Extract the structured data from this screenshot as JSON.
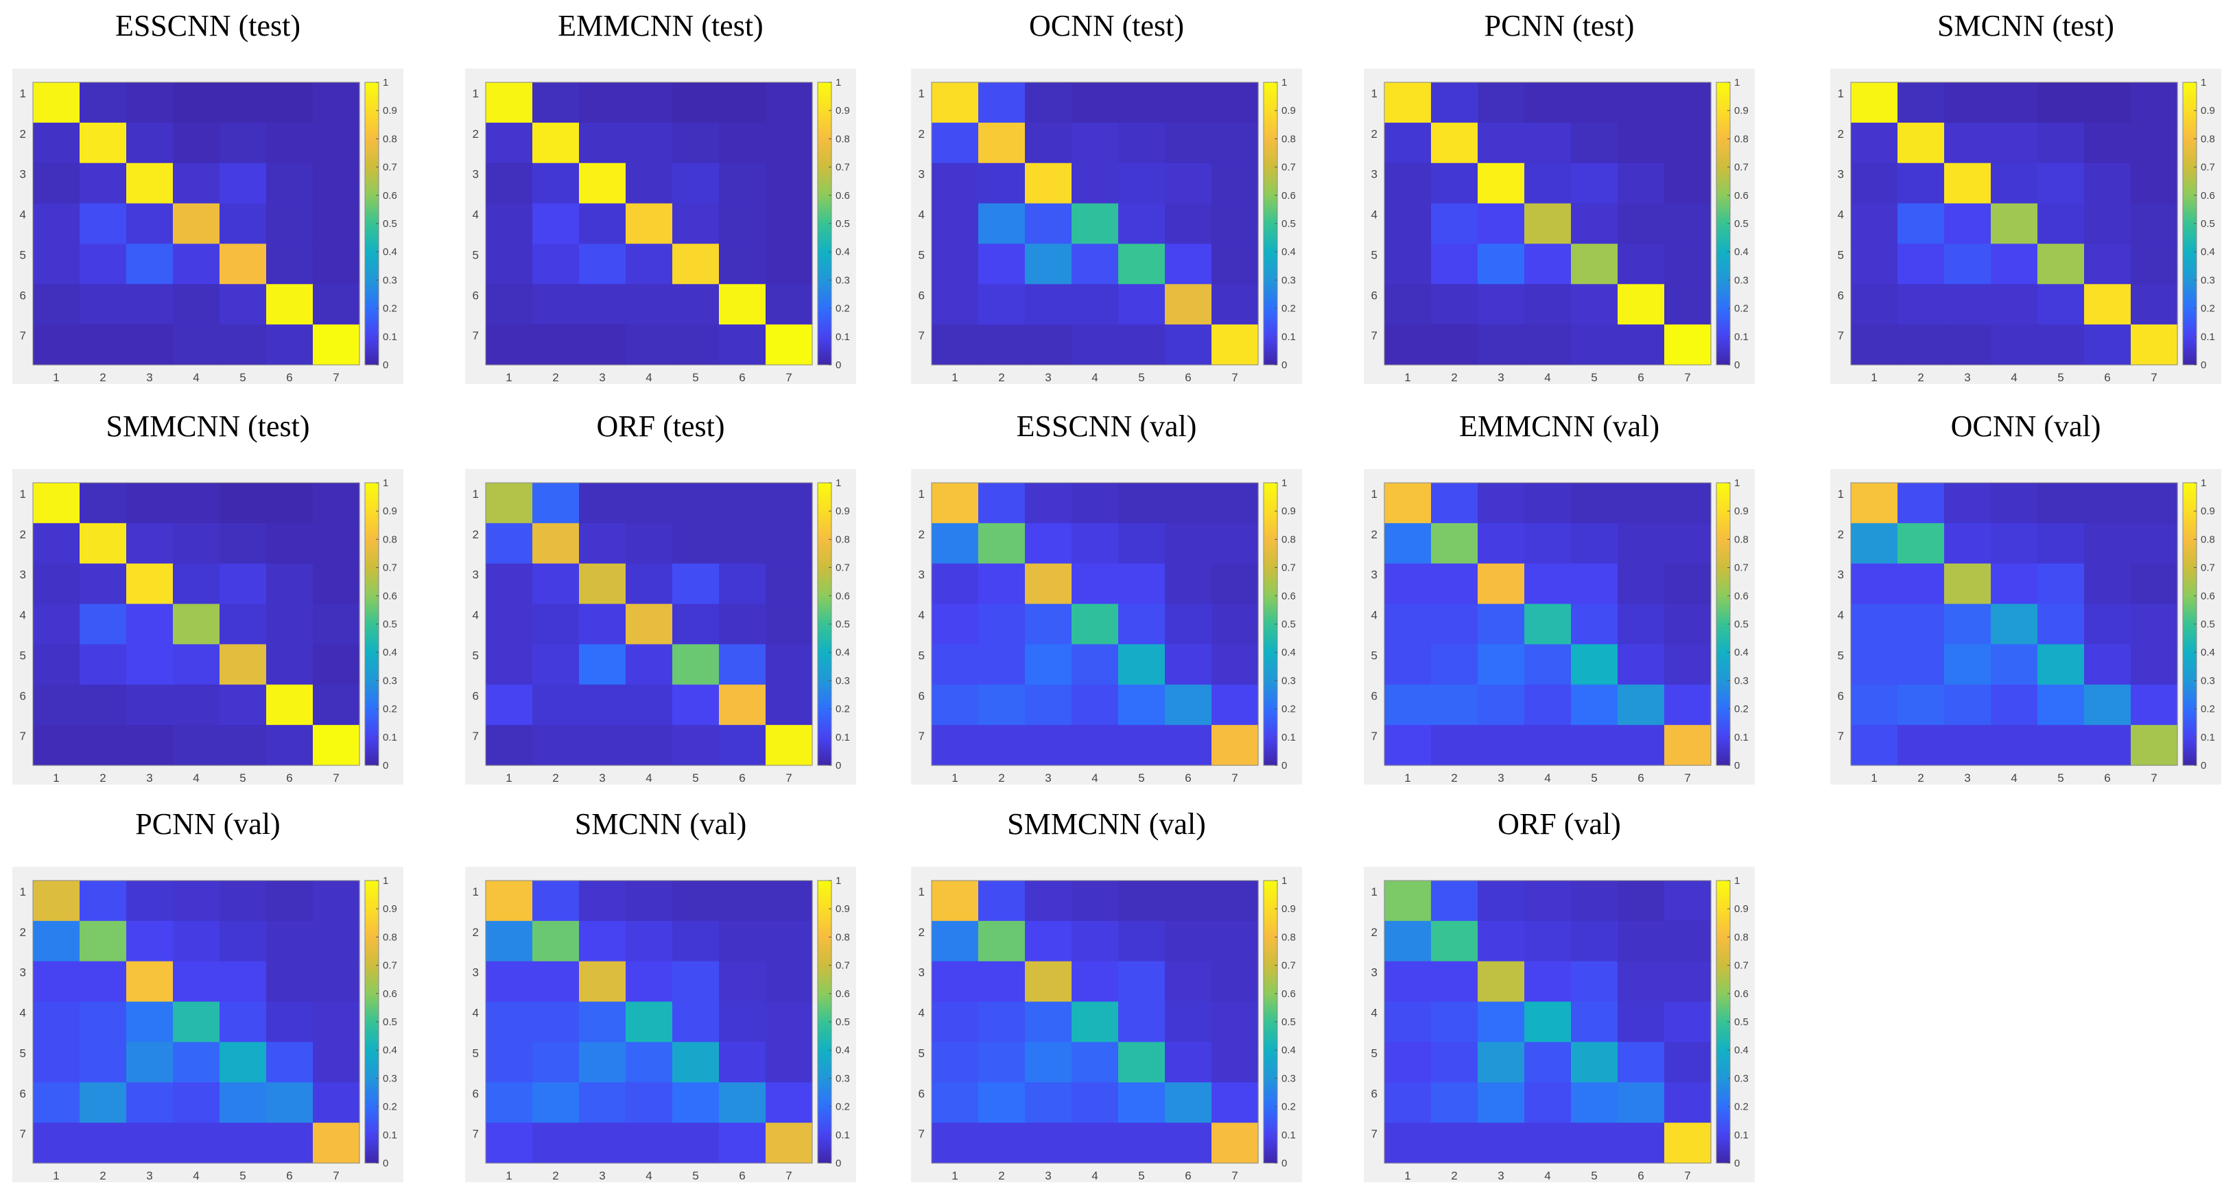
{
  "figure": {
    "colormap": "parula",
    "colormap_stops": [
      "#3e26a8",
      "#4743f2",
      "#2f6ffc",
      "#2197d8",
      "#12b1c3",
      "#37c393",
      "#8ccb5c",
      "#cdbd3c",
      "#f6bd3f",
      "#fbdd26",
      "#f9fb0e"
    ],
    "grid_bg": "#f0f0f0"
  },
  "chart_data": [
    {
      "type": "heatmap",
      "title": "ESSCNN (test)",
      "categories": [
        "1",
        "2",
        "3",
        "4",
        "5",
        "6",
        "7"
      ],
      "colorbar_ticks": [
        "0",
        "0.1",
        "0.2",
        "0.3",
        "0.4",
        "0.5",
        "0.6",
        "0.7",
        "0.8",
        "0.9",
        "1"
      ],
      "clim": [
        0,
        1
      ],
      "values": [
        [
          0.98,
          0.03,
          0.02,
          0.01,
          0.01,
          0.01,
          0.02
        ],
        [
          0.04,
          0.94,
          0.04,
          0.02,
          0.03,
          0.02,
          0.02
        ],
        [
          0.03,
          0.05,
          0.95,
          0.05,
          0.08,
          0.03,
          0.02
        ],
        [
          0.05,
          0.12,
          0.07,
          0.78,
          0.06,
          0.03,
          0.02
        ],
        [
          0.05,
          0.08,
          0.16,
          0.08,
          0.8,
          0.03,
          0.02
        ],
        [
          0.03,
          0.04,
          0.04,
          0.03,
          0.05,
          0.98,
          0.03
        ],
        [
          0.02,
          0.02,
          0.02,
          0.03,
          0.03,
          0.04,
          1.0
        ]
      ]
    },
    {
      "type": "heatmap",
      "title": "EMMCNN (test)",
      "categories": [
        "1",
        "2",
        "3",
        "4",
        "5",
        "6",
        "7"
      ],
      "colorbar_ticks": [
        "0",
        "0.1",
        "0.2",
        "0.3",
        "0.4",
        "0.5",
        "0.6",
        "0.7",
        "0.8",
        "0.9",
        "1"
      ],
      "clim": [
        0,
        1
      ],
      "values": [
        [
          0.98,
          0.03,
          0.02,
          0.02,
          0.01,
          0.01,
          0.02
        ],
        [
          0.05,
          0.95,
          0.04,
          0.04,
          0.03,
          0.02,
          0.02
        ],
        [
          0.03,
          0.06,
          0.97,
          0.04,
          0.06,
          0.03,
          0.02
        ],
        [
          0.04,
          0.1,
          0.06,
          0.86,
          0.05,
          0.03,
          0.02
        ],
        [
          0.04,
          0.08,
          0.12,
          0.07,
          0.88,
          0.03,
          0.02
        ],
        [
          0.03,
          0.04,
          0.04,
          0.04,
          0.04,
          0.98,
          0.03
        ],
        [
          0.02,
          0.02,
          0.02,
          0.03,
          0.03,
          0.04,
          1.0
        ]
      ]
    },
    {
      "type": "heatmap",
      "title": "OCNN (test)",
      "categories": [
        "1",
        "2",
        "3",
        "4",
        "5",
        "6",
        "7"
      ],
      "colorbar_ticks": [
        "0",
        "0.1",
        "0.2",
        "0.3",
        "0.4",
        "0.5",
        "0.6",
        "0.7",
        "0.8",
        "0.9",
        "1"
      ],
      "clim": [
        0,
        1
      ],
      "values": [
        [
          0.9,
          0.12,
          0.03,
          0.02,
          0.02,
          0.02,
          0.02
        ],
        [
          0.12,
          0.84,
          0.04,
          0.05,
          0.04,
          0.03,
          0.03
        ],
        [
          0.05,
          0.06,
          0.89,
          0.05,
          0.06,
          0.05,
          0.03
        ],
        [
          0.05,
          0.25,
          0.15,
          0.48,
          0.07,
          0.04,
          0.03
        ],
        [
          0.05,
          0.1,
          0.28,
          0.13,
          0.5,
          0.1,
          0.03
        ],
        [
          0.05,
          0.07,
          0.06,
          0.06,
          0.08,
          0.76,
          0.04
        ],
        [
          0.03,
          0.03,
          0.03,
          0.04,
          0.04,
          0.06,
          0.92
        ]
      ]
    },
    {
      "type": "heatmap",
      "title": "PCNN (test)",
      "categories": [
        "1",
        "2",
        "3",
        "4",
        "5",
        "6",
        "7"
      ],
      "colorbar_ticks": [
        "0",
        "0.1",
        "0.2",
        "0.3",
        "0.4",
        "0.5",
        "0.6",
        "0.7",
        "0.8",
        "0.9",
        "1"
      ],
      "clim": [
        0,
        1
      ],
      "values": [
        [
          0.92,
          0.06,
          0.03,
          0.02,
          0.02,
          0.02,
          0.02
        ],
        [
          0.06,
          0.92,
          0.05,
          0.05,
          0.03,
          0.02,
          0.02
        ],
        [
          0.04,
          0.06,
          0.97,
          0.06,
          0.07,
          0.04,
          0.02
        ],
        [
          0.04,
          0.12,
          0.1,
          0.68,
          0.05,
          0.03,
          0.03
        ],
        [
          0.04,
          0.1,
          0.19,
          0.1,
          0.63,
          0.04,
          0.03
        ],
        [
          0.03,
          0.04,
          0.05,
          0.04,
          0.05,
          0.98,
          0.03
        ],
        [
          0.02,
          0.02,
          0.03,
          0.03,
          0.04,
          0.04,
          1.0
        ]
      ]
    },
    {
      "type": "heatmap",
      "title": "SMCNN (test)",
      "categories": [
        "1",
        "2",
        "3",
        "4",
        "5",
        "6",
        "7"
      ],
      "colorbar_ticks": [
        "0",
        "0.1",
        "0.2",
        "0.3",
        "0.4",
        "0.5",
        "0.6",
        "0.7",
        "0.8",
        "0.9",
        "1"
      ],
      "clim": [
        0,
        1
      ],
      "values": [
        [
          0.98,
          0.03,
          0.02,
          0.02,
          0.01,
          0.01,
          0.02
        ],
        [
          0.05,
          0.93,
          0.05,
          0.05,
          0.04,
          0.02,
          0.02
        ],
        [
          0.04,
          0.06,
          0.92,
          0.06,
          0.07,
          0.04,
          0.02
        ],
        [
          0.05,
          0.16,
          0.1,
          0.63,
          0.06,
          0.04,
          0.03
        ],
        [
          0.05,
          0.1,
          0.14,
          0.1,
          0.63,
          0.05,
          0.03
        ],
        [
          0.04,
          0.05,
          0.05,
          0.05,
          0.07,
          0.91,
          0.04
        ],
        [
          0.03,
          0.03,
          0.03,
          0.04,
          0.04,
          0.06,
          0.92
        ]
      ]
    },
    {
      "type": "heatmap",
      "title": "SMMCNN (test)",
      "categories": [
        "1",
        "2",
        "3",
        "4",
        "5",
        "6",
        "7"
      ],
      "colorbar_ticks": [
        "0",
        "0.1",
        "0.2",
        "0.3",
        "0.4",
        "0.5",
        "0.6",
        "0.7",
        "0.8",
        "0.9",
        "1"
      ],
      "clim": [
        0,
        1
      ],
      "values": [
        [
          0.98,
          0.03,
          0.02,
          0.02,
          0.01,
          0.01,
          0.02
        ],
        [
          0.05,
          0.93,
          0.05,
          0.04,
          0.03,
          0.02,
          0.02
        ],
        [
          0.04,
          0.05,
          0.91,
          0.06,
          0.08,
          0.04,
          0.02
        ],
        [
          0.05,
          0.15,
          0.1,
          0.63,
          0.06,
          0.04,
          0.03
        ],
        [
          0.04,
          0.08,
          0.1,
          0.09,
          0.75,
          0.04,
          0.02
        ],
        [
          0.03,
          0.03,
          0.04,
          0.04,
          0.05,
          0.98,
          0.03
        ],
        [
          0.02,
          0.02,
          0.02,
          0.03,
          0.03,
          0.04,
          1.0
        ]
      ]
    },
    {
      "type": "heatmap",
      "title": "ORF (test)",
      "categories": [
        "1",
        "2",
        "3",
        "4",
        "5",
        "6",
        "7"
      ],
      "colorbar_ticks": [
        "0",
        "0.1",
        "0.2",
        "0.3",
        "0.4",
        "0.5",
        "0.6",
        "0.7",
        "0.8",
        "0.9",
        "1"
      ],
      "clim": [
        0,
        1
      ],
      "values": [
        [
          0.66,
          0.18,
          0.03,
          0.03,
          0.03,
          0.03,
          0.03
        ],
        [
          0.14,
          0.76,
          0.05,
          0.04,
          0.03,
          0.03,
          0.03
        ],
        [
          0.05,
          0.08,
          0.72,
          0.06,
          0.12,
          0.06,
          0.03
        ],
        [
          0.05,
          0.06,
          0.08,
          0.76,
          0.06,
          0.04,
          0.03
        ],
        [
          0.05,
          0.07,
          0.2,
          0.08,
          0.56,
          0.15,
          0.04
        ],
        [
          0.1,
          0.06,
          0.06,
          0.06,
          0.1,
          0.8,
          0.04
        ],
        [
          0.03,
          0.04,
          0.04,
          0.04,
          0.05,
          0.06,
          0.98
        ]
      ]
    },
    {
      "type": "heatmap",
      "title": "ESSCNN (val)",
      "categories": [
        "1",
        "2",
        "3",
        "4",
        "5",
        "6",
        "7"
      ],
      "colorbar_ticks": [
        "0",
        "0.1",
        "0.2",
        "0.3",
        "0.4",
        "0.5",
        "0.6",
        "0.7",
        "0.8",
        "0.9",
        "1"
      ],
      "clim": [
        0,
        1
      ],
      "values": [
        [
          0.82,
          0.12,
          0.05,
          0.04,
          0.03,
          0.03,
          0.03
        ],
        [
          0.24,
          0.56,
          0.1,
          0.08,
          0.06,
          0.04,
          0.04
        ],
        [
          0.08,
          0.1,
          0.76,
          0.1,
          0.1,
          0.04,
          0.03
        ],
        [
          0.1,
          0.12,
          0.16,
          0.48,
          0.12,
          0.06,
          0.04
        ],
        [
          0.12,
          0.12,
          0.2,
          0.15,
          0.38,
          0.08,
          0.05
        ],
        [
          0.16,
          0.18,
          0.16,
          0.12,
          0.2,
          0.28,
          0.1
        ],
        [
          0.08,
          0.08,
          0.08,
          0.08,
          0.08,
          0.08,
          0.8
        ]
      ]
    },
    {
      "type": "heatmap",
      "title": "EMMCNN (val)",
      "categories": [
        "1",
        "2",
        "3",
        "4",
        "5",
        "6",
        "7"
      ],
      "colorbar_ticks": [
        "0",
        "0.1",
        "0.2",
        "0.3",
        "0.4",
        "0.5",
        "0.6",
        "0.7",
        "0.8",
        "0.9",
        "1"
      ],
      "clim": [
        0,
        1
      ],
      "values": [
        [
          0.82,
          0.12,
          0.05,
          0.04,
          0.03,
          0.03,
          0.03
        ],
        [
          0.22,
          0.58,
          0.08,
          0.07,
          0.06,
          0.04,
          0.04
        ],
        [
          0.1,
          0.1,
          0.8,
          0.1,
          0.1,
          0.04,
          0.03
        ],
        [
          0.12,
          0.12,
          0.16,
          0.45,
          0.12,
          0.06,
          0.04
        ],
        [
          0.12,
          0.14,
          0.2,
          0.16,
          0.4,
          0.08,
          0.05
        ],
        [
          0.18,
          0.18,
          0.16,
          0.12,
          0.2,
          0.3,
          0.1
        ],
        [
          0.1,
          0.08,
          0.08,
          0.08,
          0.08,
          0.08,
          0.8
        ]
      ]
    },
    {
      "type": "heatmap",
      "title": "OCNN (val)",
      "categories": [
        "1",
        "2",
        "3",
        "4",
        "5",
        "6",
        "7"
      ],
      "colorbar_ticks": [
        "0",
        "0.1",
        "0.2",
        "0.3",
        "0.4",
        "0.5",
        "0.6",
        "0.7",
        "0.8",
        "0.9",
        "1"
      ],
      "clim": [
        0,
        1
      ],
      "values": [
        [
          0.82,
          0.12,
          0.05,
          0.04,
          0.03,
          0.03,
          0.03
        ],
        [
          0.3,
          0.5,
          0.08,
          0.07,
          0.06,
          0.04,
          0.04
        ],
        [
          0.1,
          0.1,
          0.66,
          0.1,
          0.12,
          0.04,
          0.03
        ],
        [
          0.14,
          0.14,
          0.18,
          0.32,
          0.14,
          0.06,
          0.05
        ],
        [
          0.14,
          0.14,
          0.22,
          0.18,
          0.38,
          0.08,
          0.05
        ],
        [
          0.16,
          0.18,
          0.16,
          0.12,
          0.2,
          0.28,
          0.1
        ],
        [
          0.12,
          0.08,
          0.08,
          0.08,
          0.08,
          0.08,
          0.64
        ]
      ]
    },
    {
      "type": "heatmap",
      "title": "PCNN (val)",
      "categories": [
        "1",
        "2",
        "3",
        "4",
        "5",
        "6",
        "7"
      ],
      "colorbar_ticks": [
        "0",
        "0.1",
        "0.2",
        "0.3",
        "0.4",
        "0.5",
        "0.6",
        "0.7",
        "0.8",
        "0.9",
        "1"
      ],
      "clim": [
        0,
        1
      ],
      "values": [
        [
          0.74,
          0.12,
          0.06,
          0.05,
          0.04,
          0.03,
          0.04
        ],
        [
          0.24,
          0.58,
          0.1,
          0.08,
          0.06,
          0.04,
          0.04
        ],
        [
          0.1,
          0.1,
          0.82,
          0.1,
          0.1,
          0.04,
          0.04
        ],
        [
          0.12,
          0.14,
          0.22,
          0.45,
          0.12,
          0.06,
          0.05
        ],
        [
          0.12,
          0.14,
          0.26,
          0.18,
          0.38,
          0.14,
          0.05
        ],
        [
          0.16,
          0.28,
          0.14,
          0.12,
          0.24,
          0.26,
          0.08
        ],
        [
          0.08,
          0.08,
          0.08,
          0.08,
          0.08,
          0.08,
          0.8
        ]
      ]
    },
    {
      "type": "heatmap",
      "title": "SMCNN (val)",
      "categories": [
        "1",
        "2",
        "3",
        "4",
        "5",
        "6",
        "7"
      ],
      "colorbar_ticks": [
        "0",
        "0.1",
        "0.2",
        "0.3",
        "0.4",
        "0.5",
        "0.6",
        "0.7",
        "0.8",
        "0.9",
        "1"
      ],
      "clim": [
        0,
        1
      ],
      "values": [
        [
          0.82,
          0.12,
          0.05,
          0.04,
          0.03,
          0.03,
          0.03
        ],
        [
          0.26,
          0.56,
          0.1,
          0.08,
          0.06,
          0.04,
          0.04
        ],
        [
          0.1,
          0.1,
          0.74,
          0.1,
          0.12,
          0.05,
          0.04
        ],
        [
          0.14,
          0.14,
          0.18,
          0.42,
          0.12,
          0.06,
          0.05
        ],
        [
          0.14,
          0.16,
          0.24,
          0.18,
          0.36,
          0.08,
          0.05
        ],
        [
          0.18,
          0.22,
          0.16,
          0.14,
          0.2,
          0.28,
          0.1
        ],
        [
          0.1,
          0.08,
          0.08,
          0.08,
          0.08,
          0.1,
          0.76
        ]
      ]
    },
    {
      "type": "heatmap",
      "title": "SMMCNN (val)",
      "categories": [
        "1",
        "2",
        "3",
        "4",
        "5",
        "6",
        "7"
      ],
      "colorbar_ticks": [
        "0",
        "0.1",
        "0.2",
        "0.3",
        "0.4",
        "0.5",
        "0.6",
        "0.7",
        "0.8",
        "0.9",
        "1"
      ],
      "clim": [
        0,
        1
      ],
      "values": [
        [
          0.82,
          0.12,
          0.05,
          0.04,
          0.03,
          0.03,
          0.03
        ],
        [
          0.24,
          0.56,
          0.1,
          0.08,
          0.06,
          0.04,
          0.04
        ],
        [
          0.1,
          0.1,
          0.72,
          0.1,
          0.12,
          0.05,
          0.04
        ],
        [
          0.12,
          0.14,
          0.18,
          0.42,
          0.12,
          0.06,
          0.05
        ],
        [
          0.14,
          0.16,
          0.22,
          0.18,
          0.46,
          0.08,
          0.05
        ],
        [
          0.16,
          0.2,
          0.16,
          0.14,
          0.2,
          0.28,
          0.1
        ],
        [
          0.08,
          0.08,
          0.08,
          0.08,
          0.08,
          0.08,
          0.8
        ]
      ]
    },
    {
      "type": "heatmap",
      "title": "ORF (val)",
      "categories": [
        "1",
        "2",
        "3",
        "4",
        "5",
        "6",
        "7"
      ],
      "colorbar_ticks": [
        "0",
        "0.1",
        "0.2",
        "0.3",
        "0.4",
        "0.5",
        "0.6",
        "0.7",
        "0.8",
        "0.9",
        "1"
      ],
      "clim": [
        0,
        1
      ],
      "values": [
        [
          0.58,
          0.14,
          0.06,
          0.05,
          0.04,
          0.03,
          0.05
        ],
        [
          0.26,
          0.5,
          0.08,
          0.07,
          0.06,
          0.04,
          0.04
        ],
        [
          0.1,
          0.1,
          0.68,
          0.1,
          0.12,
          0.05,
          0.05
        ],
        [
          0.12,
          0.14,
          0.2,
          0.4,
          0.14,
          0.06,
          0.08
        ],
        [
          0.1,
          0.12,
          0.3,
          0.14,
          0.36,
          0.14,
          0.06
        ],
        [
          0.12,
          0.16,
          0.22,
          0.12,
          0.22,
          0.24,
          0.08
        ],
        [
          0.08,
          0.08,
          0.08,
          0.08,
          0.08,
          0.08,
          0.9
        ]
      ]
    }
  ]
}
